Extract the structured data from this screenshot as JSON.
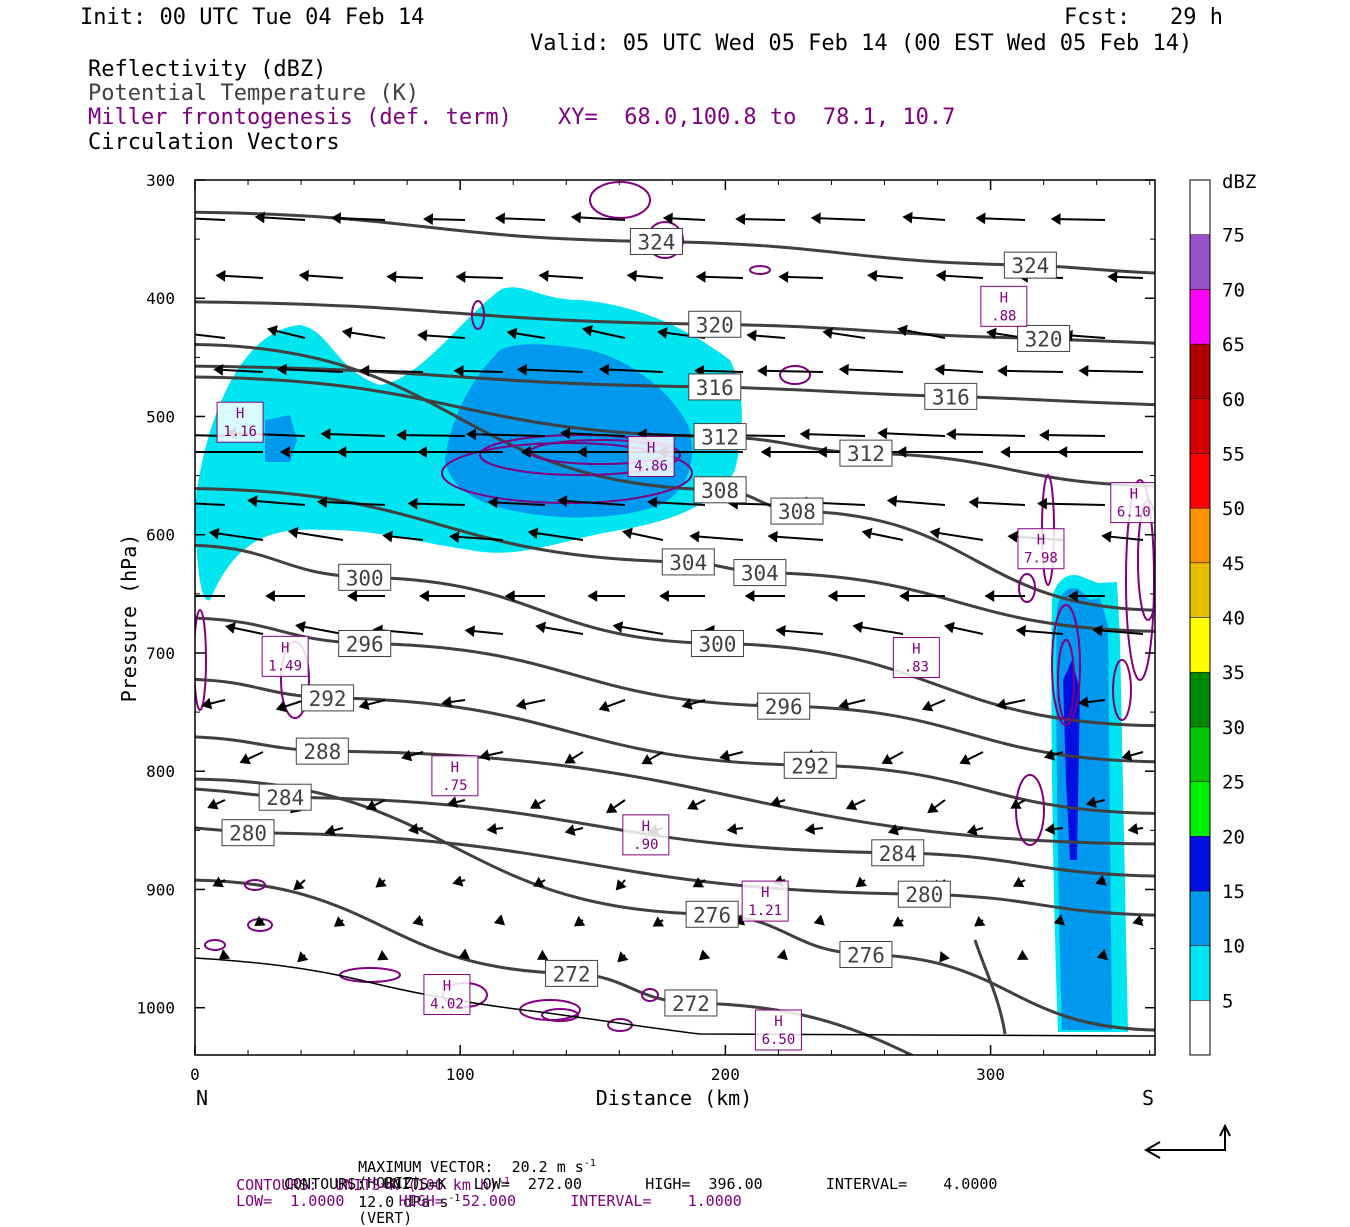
{
  "header": {
    "init": "Init: 00 UTC Tue 04 Feb 14",
    "fcst": "Fcst:   29 h",
    "valid": "Valid: 05 UTC Wed 05 Feb 14 (00 EST Wed 05 Feb 14)",
    "field_reflectivity": "Reflectivity (dBZ)",
    "field_theta": "Potential Temperature (K)",
    "field_miller": "Miller frontogenesis (def. term)",
    "xy": "XY=  68.0,100.8 to  78.1, 10.7",
    "field_vectors": "Circulation Vectors"
  },
  "colors": {
    "theta": "#404040",
    "miller": "#800080",
    "label_theta": "#404040"
  },
  "chart_data": {
    "type": "cross-section",
    "xlabel": "Distance (km)",
    "ylabel": "Pressure (hPa)",
    "xlim": [
      0,
      362
    ],
    "ylim": [
      300,
      1040
    ],
    "x_ticks": [
      0,
      100,
      200,
      300
    ],
    "y_ticks": [
      300,
      400,
      500,
      600,
      700,
      800,
      900,
      1000
    ],
    "x_end_labels": {
      "left": "N",
      "right": "S"
    },
    "theta_labels": [
      {
        "v": "324",
        "x": 174,
        "p": 352
      },
      {
        "v": "324",
        "x": 315,
        "p": 372
      },
      {
        "v": "320",
        "x": 196,
        "p": 422
      },
      {
        "v": "320",
        "x": 320,
        "p": 434
      },
      {
        "v": "316",
        "x": 196,
        "p": 475
      },
      {
        "v": "316",
        "x": 285,
        "p": 483
      },
      {
        "v": "312",
        "x": 198,
        "p": 517
      },
      {
        "v": "312",
        "x": 253,
        "p": 531
      },
      {
        "v": "308",
        "x": 198,
        "p": 562
      },
      {
        "v": "308",
        "x": 227,
        "p": 580
      },
      {
        "v": "304",
        "x": 186,
        "p": 623
      },
      {
        "v": "304",
        "x": 213,
        "p": 632
      },
      {
        "v": "300",
        "x": 64,
        "p": 636
      },
      {
        "v": "300",
        "x": 197,
        "p": 692
      },
      {
        "v": "296",
        "x": 64,
        "p": 692
      },
      {
        "v": "296",
        "x": 222,
        "p": 745
      },
      {
        "v": "292",
        "x": 50,
        "p": 738
      },
      {
        "v": "292",
        "x": 232,
        "p": 795
      },
      {
        "v": "288",
        "x": 48,
        "p": 783
      },
      {
        "v": "284",
        "x": 34,
        "p": 822
      },
      {
        "v": "284",
        "x": 265,
        "p": 869
      },
      {
        "v": "280",
        "x": 20,
        "p": 852
      },
      {
        "v": "280",
        "x": 275,
        "p": 904
      },
      {
        "v": "276",
        "x": 195,
        "p": 921
      },
      {
        "v": "276",
        "x": 253,
        "p": 955
      },
      {
        "v": "272",
        "x": 142,
        "p": 971
      },
      {
        "v": "272",
        "x": 187,
        "p": 996
      }
    ],
    "frontogenesis_maxima": [
      {
        "v": "1.16",
        "x": 17,
        "p": 504
      },
      {
        "v": ".88",
        "x": 305,
        "p": 406
      },
      {
        "v": "4.86",
        "x": 172,
        "p": 533
      },
      {
        "v": "6.10",
        "x": 354,
        "p": 572
      },
      {
        "v": "7.98",
        "x": 319,
        "p": 611
      },
      {
        "v": ".83",
        "x": 272,
        "p": 703
      },
      {
        "v": "1.49",
        "x": 34,
        "p": 702
      },
      {
        "v": ".75",
        "x": 98,
        "p": 803
      },
      {
        "v": ".90",
        "x": 170,
        "p": 853
      },
      {
        "v": "1.21",
        "x": 215,
        "p": 909
      },
      {
        "v": "4.02",
        "x": 95,
        "p": 988
      },
      {
        "v": "6.50",
        "x": 220,
        "p": 1018
      }
    ],
    "colorbar": {
      "title": "dBZ",
      "levels": [
        "5",
        "10",
        "15",
        "20",
        "25",
        "30",
        "35",
        "40",
        "45",
        "50",
        "55",
        "60",
        "65",
        "70",
        "75"
      ],
      "colors": [
        "#ffffff",
        "#00e5f0",
        "#0099ee",
        "#0010e0",
        "#00ee00",
        "#00c800",
        "#008800",
        "#ffff00",
        "#e6c000",
        "#ff9000",
        "#ff0000",
        "#d60000",
        "#b00000",
        "#ff00ff",
        "#9a50c8",
        "#ffffff"
      ]
    }
  },
  "footer": {
    "max_vector_a": "MAXIMUM VECTOR:  20.2 m s",
    "max_vector_b": "(HORIZ)",
    "max_vector_c": "12.0 dPa s",
    "max_vector_d": "(VERT)",
    "sup": "-1",
    "contours1_a": "CONTOURS:  UNITS=K (100 km h)",
    "contours1_b": "LOW=  1.0000      HIGH=  52.000      INTERVAL=    1.0000",
    "contours2": "CONTOURS:  UNITS=K   LOW=  272.00       HIGH=  396.00       INTERVAL=    4.0000"
  }
}
